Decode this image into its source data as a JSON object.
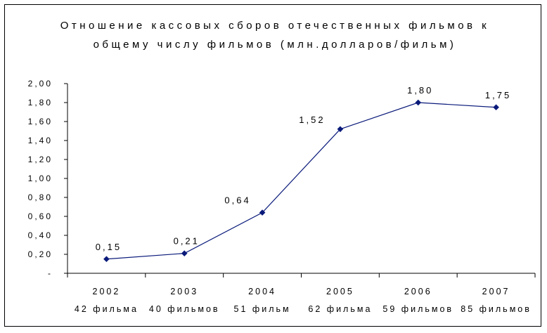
{
  "chart_data": {
    "type": "line",
    "title_lines": [
      "Отношение кассовых сборов отечественных фильмов к",
      "общему числу фильмов (млн.долларов/фильм)"
    ],
    "categories": [
      "2002",
      "2003",
      "2004",
      "2005",
      "2006",
      "2007"
    ],
    "category_sublabels": [
      "42 фильма",
      "40 фильмов",
      "51 фильм",
      "62 фильма",
      "59 фильмов",
      "85 фильмов"
    ],
    "values": [
      0.15,
      0.21,
      0.64,
      1.52,
      1.8,
      1.75
    ],
    "data_labels": [
      "0,15",
      "0,21",
      "0,64",
      "1,52",
      "1,80",
      "1,75"
    ],
    "ylim": [
      0,
      2.0
    ],
    "yticks": [
      0,
      0.2,
      0.4,
      0.6,
      0.8,
      1.0,
      1.2,
      1.4,
      1.6,
      1.8,
      2.0
    ],
    "ytick_labels": [
      "-",
      "0,20",
      "0,40",
      "0,60",
      "0,80",
      "1,00",
      "1,20",
      "1,40",
      "1,60",
      "1,80",
      "2,00"
    ],
    "grid": false,
    "legend": "none",
    "colors": {
      "line": "#0a1a7a",
      "marker": "#0a1a7a",
      "axis": "#000000"
    }
  }
}
